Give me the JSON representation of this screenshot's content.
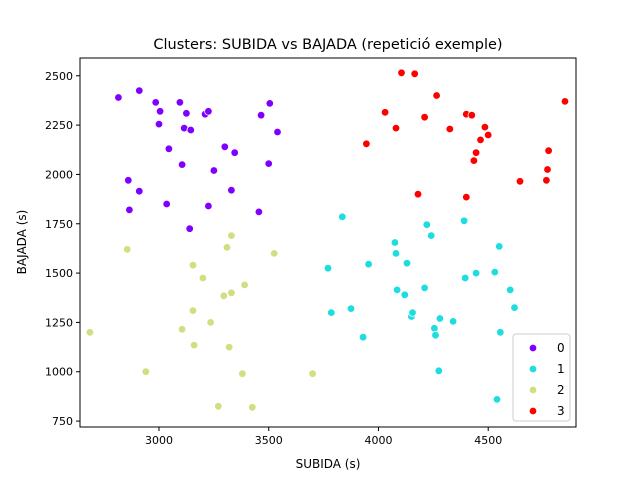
{
  "chart_data": {
    "type": "scatter",
    "title": "Clusters: SUBIDA vs BAJADA (repetició exemple)",
    "xlabel": "SUBIDA (s)",
    "ylabel": "BAJADA (s)",
    "xlim": [
      2640,
      4900
    ],
    "ylim": [
      720,
      2590
    ],
    "xticks": [
      3000,
      3500,
      4000,
      4500
    ],
    "yticks": [
      750,
      1000,
      1250,
      1500,
      1750,
      2000,
      2250,
      2500
    ],
    "grid": false,
    "legend_position": "lower-right",
    "series": [
      {
        "name": "0",
        "color": "#8000ff",
        "points": [
          [
            2815,
            2390
          ],
          [
            2910,
            2425
          ],
          [
            2985,
            2365
          ],
          [
            3005,
            2320
          ],
          [
            3000,
            2255
          ],
          [
            3045,
            2130
          ],
          [
            3095,
            2365
          ],
          [
            3125,
            2310
          ],
          [
            3115,
            2235
          ],
          [
            3145,
            2225
          ],
          [
            3210,
            2305
          ],
          [
            3225,
            2320
          ],
          [
            3300,
            2140
          ],
          [
            3345,
            2110
          ],
          [
            3465,
            2300
          ],
          [
            3505,
            2360
          ],
          [
            3540,
            2215
          ],
          [
            3500,
            2055
          ],
          [
            3250,
            2020
          ],
          [
            3105,
            2050
          ],
          [
            2860,
            1970
          ],
          [
            2910,
            1915
          ],
          [
            3330,
            1920
          ],
          [
            3035,
            1850
          ],
          [
            3225,
            1840
          ],
          [
            2865,
            1820
          ],
          [
            3455,
            1810
          ],
          [
            3140,
            1725
          ]
        ]
      },
      {
        "name": "1",
        "color": "#1ddde0",
        "points": [
          [
            3835,
            1785
          ],
          [
            3770,
            1525
          ],
          [
            3955,
            1545
          ],
          [
            4075,
            1655
          ],
          [
            4080,
            1600
          ],
          [
            4130,
            1550
          ],
          [
            4220,
            1745
          ],
          [
            4240,
            1690
          ],
          [
            4390,
            1765
          ],
          [
            4550,
            1635
          ],
          [
            4445,
            1500
          ],
          [
            4530,
            1505
          ],
          [
            4395,
            1475
          ],
          [
            4600,
            1415
          ],
          [
            4620,
            1325
          ],
          [
            4210,
            1425
          ],
          [
            4085,
            1415
          ],
          [
            4120,
            1390
          ],
          [
            3785,
            1300
          ],
          [
            3875,
            1320
          ],
          [
            4150,
            1280
          ],
          [
            4155,
            1300
          ],
          [
            4280,
            1270
          ],
          [
            4340,
            1255
          ],
          [
            4255,
            1220
          ],
          [
            4260,
            1185
          ],
          [
            3930,
            1175
          ],
          [
            4555,
            1200
          ],
          [
            4275,
            1005
          ],
          [
            4540,
            860
          ]
        ]
      },
      {
        "name": "2",
        "color": "#d4dd80",
        "points": [
          [
            2855,
            1620
          ],
          [
            3330,
            1690
          ],
          [
            3310,
            1630
          ],
          [
            3525,
            1600
          ],
          [
            3155,
            1540
          ],
          [
            3200,
            1475
          ],
          [
            3390,
            1440
          ],
          [
            3330,
            1400
          ],
          [
            3295,
            1385
          ],
          [
            3155,
            1310
          ],
          [
            3235,
            1250
          ],
          [
            3105,
            1215
          ],
          [
            2685,
            1200
          ],
          [
            3160,
            1135
          ],
          [
            3320,
            1125
          ],
          [
            2940,
            1000
          ],
          [
            3380,
            990
          ],
          [
            3700,
            990
          ],
          [
            3270,
            825
          ],
          [
            3425,
            820
          ]
        ]
      },
      {
        "name": "3",
        "color": "#ff0000",
        "points": [
          [
            4105,
            2515
          ],
          [
            4165,
            2510
          ],
          [
            4265,
            2400
          ],
          [
            4030,
            2315
          ],
          [
            4080,
            2235
          ],
          [
            4210,
            2290
          ],
          [
            4400,
            2305
          ],
          [
            4425,
            2300
          ],
          [
            4325,
            2230
          ],
          [
            4485,
            2240
          ],
          [
            4500,
            2200
          ],
          [
            4465,
            2175
          ],
          [
            4445,
            2110
          ],
          [
            4435,
            2070
          ],
          [
            3945,
            2155
          ],
          [
            4850,
            2370
          ],
          [
            4775,
            2120
          ],
          [
            4770,
            2025
          ],
          [
            4765,
            1970
          ],
          [
            4645,
            1965
          ],
          [
            4180,
            1900
          ],
          [
            4400,
            1885
          ]
        ]
      }
    ]
  }
}
